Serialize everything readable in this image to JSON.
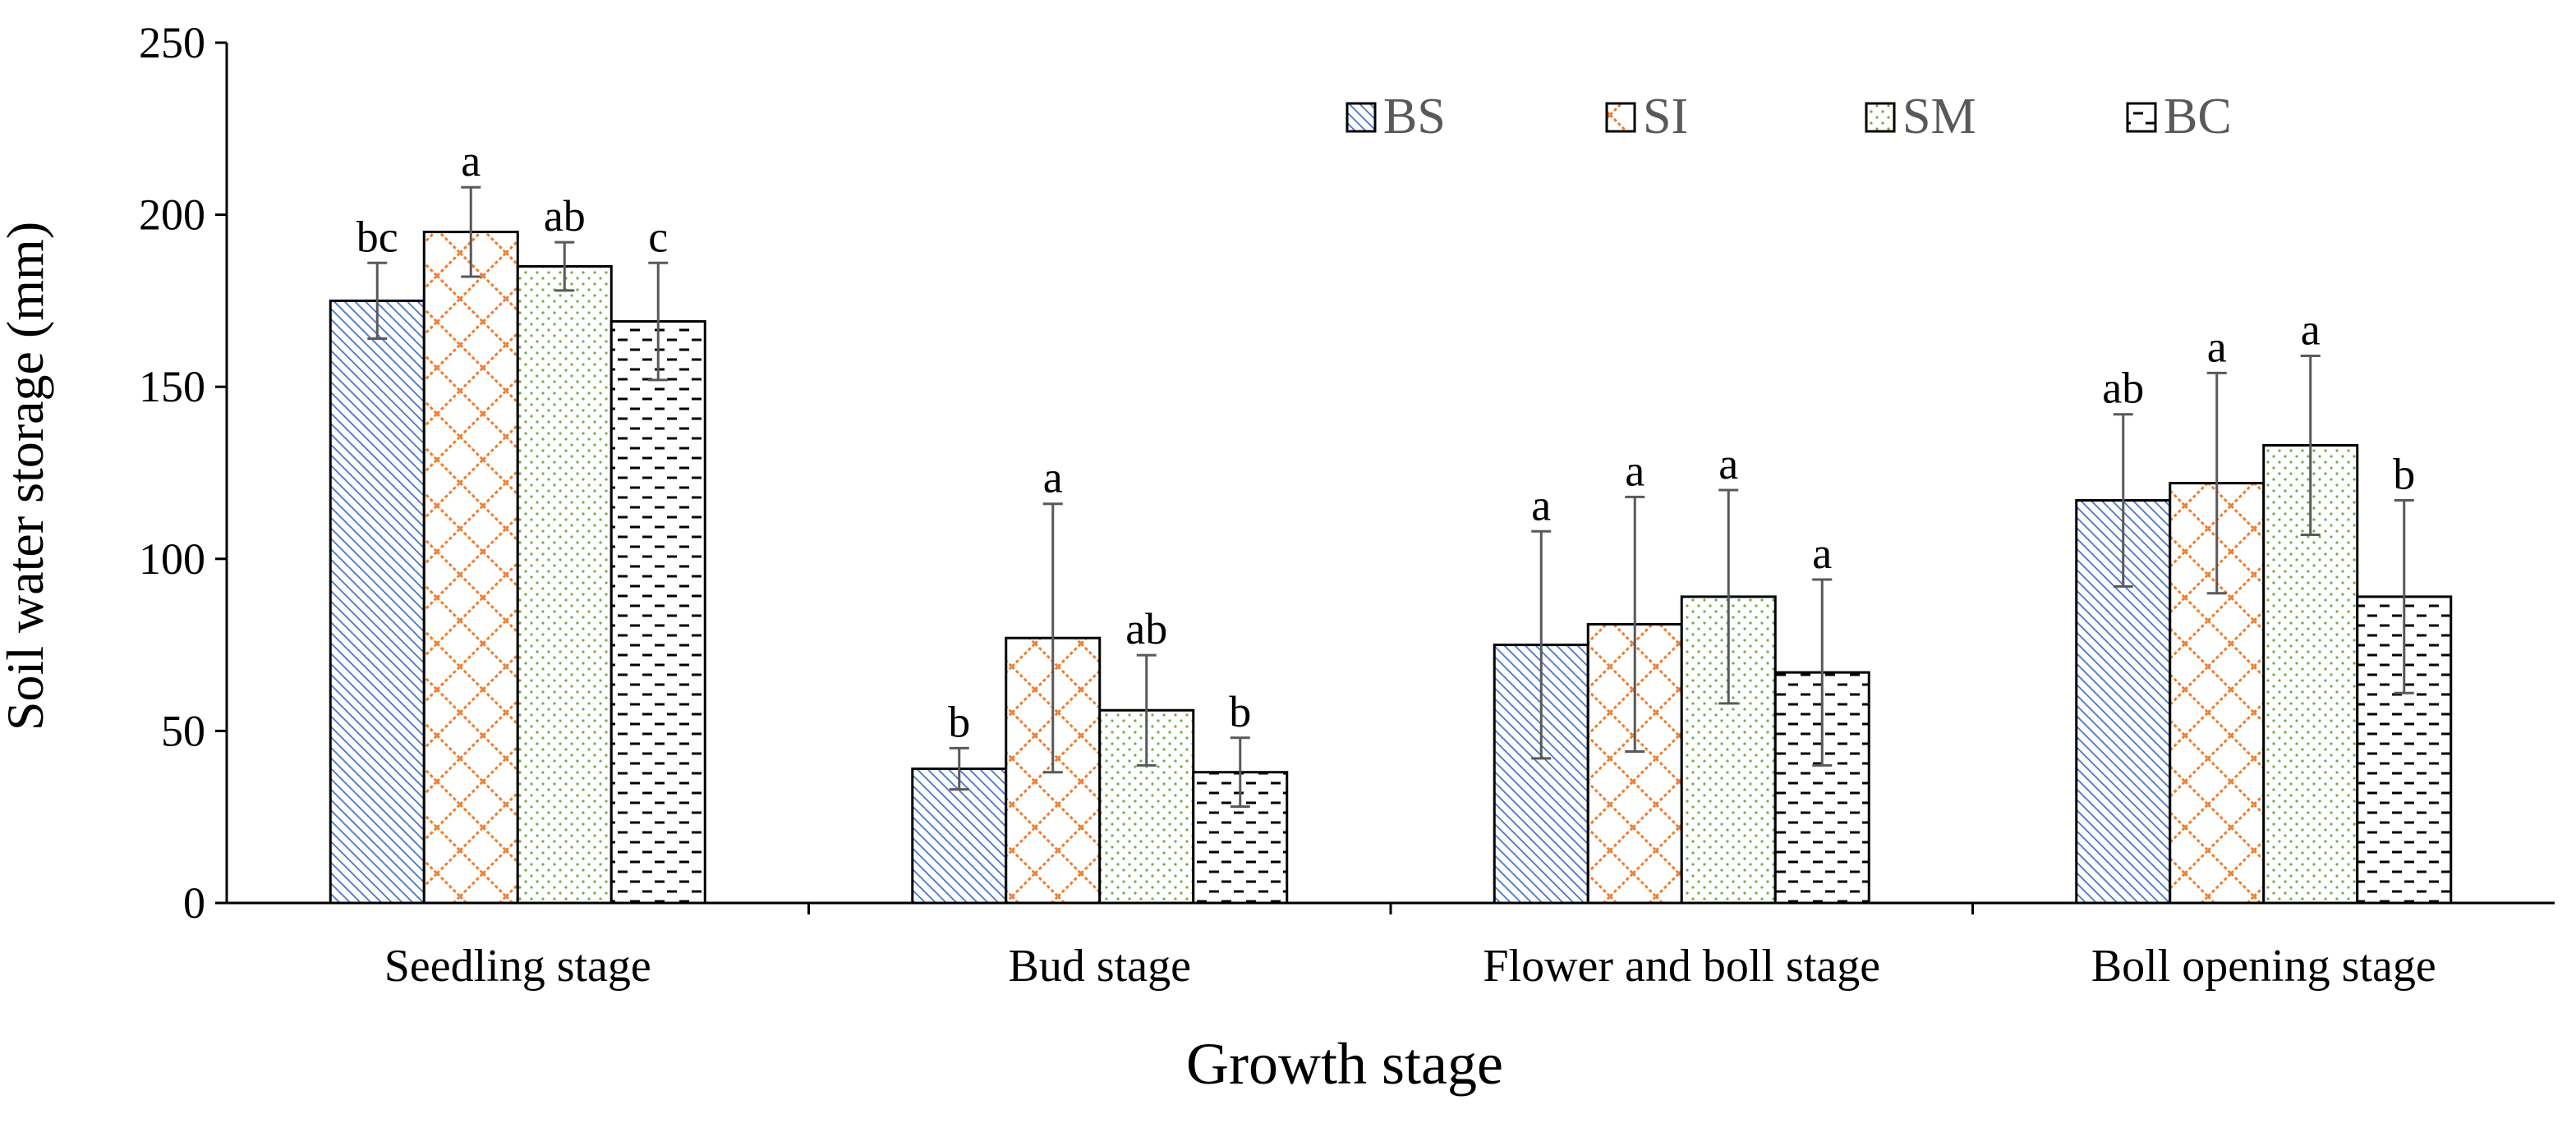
{
  "chart_data": {
    "type": "bar",
    "title": "",
    "xlabel": "Growth stage",
    "ylabel": "Soil water storage (mm)",
    "ylim": [
      0,
      250
    ],
    "yticks": [
      0,
      50,
      100,
      150,
      200,
      250
    ],
    "grid": false,
    "legend_position": "top-right",
    "categories": [
      "Seedling stage",
      "Bud stage",
      "Flower and boll stage",
      "Boll opening stage"
    ],
    "series": [
      {
        "name": "BS",
        "pattern": "diagonal",
        "color": "#4472C4",
        "values": [
          175,
          39,
          75,
          117
        ],
        "errors": [
          11,
          6,
          33,
          25
        ],
        "letters": [
          "bc",
          "b",
          "a",
          "ab"
        ]
      },
      {
        "name": "SI",
        "pattern": "lattice",
        "color": "#ED7D31",
        "values": [
          195,
          77,
          81,
          122
        ],
        "errors": [
          13,
          39,
          37,
          32
        ],
        "letters": [
          "a",
          "a",
          "a",
          "a"
        ]
      },
      {
        "name": "SM",
        "pattern": "dots",
        "color": "#70AD47",
        "values": [
          185,
          56,
          89,
          133
        ],
        "errors": [
          7,
          16,
          31,
          26
        ],
        "letters": [
          "ab",
          "ab",
          "a",
          "a"
        ]
      },
      {
        "name": "BC",
        "pattern": "dashes",
        "color": "#000000",
        "values": [
          169,
          38,
          67,
          89
        ],
        "errors": [
          17,
          10,
          27,
          28
        ],
        "letters": [
          "c",
          "b",
          "a",
          "b"
        ]
      }
    ]
  }
}
